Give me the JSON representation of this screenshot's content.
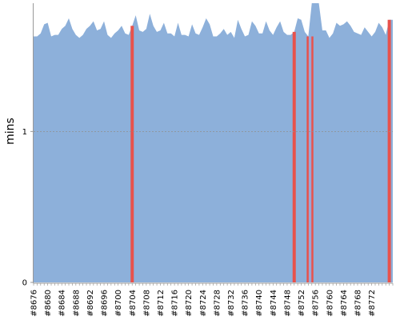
{
  "chart_data": {
    "type": "area",
    "ylabel": "mins",
    "ylim": [
      0,
      1.85
    ],
    "yticks": [
      0,
      1
    ],
    "grid": "dashed horizontal line at y = 1",
    "x_first": 8676,
    "x_step": 1,
    "xtick_labels": [
      "#8676",
      "#8680",
      "#8684",
      "#8688",
      "#8692",
      "#8696",
      "#8700",
      "#8704",
      "#8708",
      "#8712",
      "#8716",
      "#8720",
      "#8724",
      "#8728",
      "#8732",
      "#8736",
      "#8740",
      "#8744",
      "#8748",
      "#8752",
      "#8756",
      "#8760",
      "#8764",
      "#8768",
      "#8772"
    ],
    "values": [
      1.63,
      1.63,
      1.65,
      1.71,
      1.72,
      1.63,
      1.64,
      1.64,
      1.68,
      1.7,
      1.75,
      1.68,
      1.64,
      1.62,
      1.64,
      1.68,
      1.7,
      1.73,
      1.67,
      1.68,
      1.73,
      1.64,
      1.62,
      1.65,
      1.67,
      1.7,
      1.65,
      1.64,
      1.7,
      1.77,
      1.67,
      1.66,
      1.68,
      1.78,
      1.7,
      1.66,
      1.67,
      1.72,
      1.65,
      1.65,
      1.63,
      1.72,
      1.64,
      1.64,
      1.63,
      1.71,
      1.65,
      1.64,
      1.69,
      1.75,
      1.71,
      1.63,
      1.63,
      1.65,
      1.68,
      1.64,
      1.66,
      1.62,
      1.74,
      1.68,
      1.63,
      1.64,
      1.73,
      1.7,
      1.65,
      1.65,
      1.73,
      1.67,
      1.64,
      1.69,
      1.73,
      1.66,
      1.64,
      1.64,
      1.66,
      1.75,
      1.74,
      1.66,
      1.63,
      1.85,
      1.85,
      1.85,
      1.67,
      1.67,
      1.62,
      1.65,
      1.72,
      1.7,
      1.71,
      1.73,
      1.7,
      1.66,
      1.65,
      1.64,
      1.69,
      1.66,
      1.63,
      1.66,
      1.72,
      1.69,
      1.64,
      1.74,
      1.74
    ],
    "highlights": [
      {
        "start": 8704,
        "end": 8704,
        "color": "#e8524c"
      },
      {
        "start": 8750,
        "end": 8750,
        "color": "#e8524c"
      },
      {
        "start": 8754,
        "end": 8755,
        "color": "#e8524c"
      },
      {
        "start": 8777,
        "end": 8777,
        "color": "#e8524c"
      }
    ],
    "colors": {
      "area": "#8db0da",
      "highlight": "#e8524c",
      "highlight_core": "#9aa6d6",
      "grid": "#8f8f8f",
      "axis": "#999999"
    }
  }
}
